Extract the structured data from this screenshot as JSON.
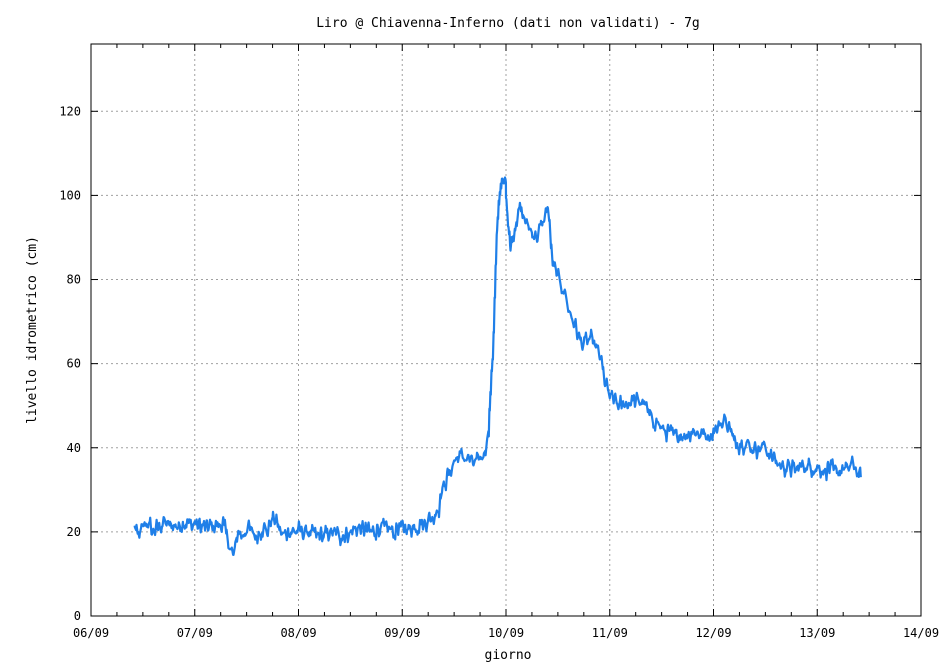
{
  "chart_data": {
    "type": "line",
    "title": "Liro @ Chiavenna-Inferno (dati non validati) - 7g",
    "xlabel": "giorno",
    "ylabel": "livello idrometrico (cm)",
    "xlim": [
      0,
      8
    ],
    "ylim": [
      0,
      136
    ],
    "x_ticks": [
      "06/09",
      "07/09",
      "08/09",
      "09/09",
      "10/09",
      "11/09",
      "12/09",
      "13/09",
      "14/09"
    ],
    "y_ticks": [
      0,
      20,
      40,
      60,
      80,
      100,
      120
    ],
    "grid": true,
    "line_color": "#1f7fe8",
    "series": [
      {
        "x": [
          0.42,
          0.45,
          0.5,
          0.55,
          0.6,
          0.7,
          0.8,
          0.9,
          1.0,
          1.1,
          1.2,
          1.27,
          1.32,
          1.37,
          1.42,
          1.45,
          1.5,
          1.55,
          1.6,
          1.65,
          1.7,
          1.75,
          1.8,
          1.85,
          1.9,
          2.0,
          2.1,
          2.2,
          2.3,
          2.4,
          2.5,
          2.6,
          2.7,
          2.8,
          2.9,
          3.0,
          3.1,
          3.2,
          3.3,
          3.35,
          3.4,
          3.45,
          3.5,
          3.55,
          3.6,
          3.65,
          3.7,
          3.75,
          3.8,
          3.83,
          3.85,
          3.87,
          3.89,
          3.91,
          3.93,
          3.95,
          3.97,
          3.99,
          4.0,
          4.02,
          4.04,
          4.07,
          4.1,
          4.13,
          4.16,
          4.2,
          4.25,
          4.3,
          4.35,
          4.4,
          4.45,
          4.5,
          4.55,
          4.6,
          4.65,
          4.7,
          4.75,
          4.8,
          4.85,
          4.9,
          4.95,
          5.0,
          5.05,
          5.1,
          5.2,
          5.3,
          5.35,
          5.4,
          5.45,
          5.5,
          5.6,
          5.7,
          5.8,
          5.9,
          6.0,
          6.05,
          6.1,
          6.15,
          6.2,
          6.3,
          6.4,
          6.5,
          6.55,
          6.6,
          6.65,
          6.7,
          6.8,
          6.9,
          7.0,
          7.1,
          7.2,
          7.3,
          7.35,
          7.4,
          7.42
        ],
        "y": [
          21,
          19,
          21,
          22,
          20,
          22,
          21,
          22,
          22,
          21,
          22,
          22,
          18,
          14,
          20,
          19,
          21,
          20,
          19,
          21,
          20,
          24,
          22,
          19,
          20,
          20,
          20,
          19,
          20,
          19,
          20,
          21,
          20,
          21,
          20,
          21,
          21,
          22,
          24,
          26,
          31,
          34,
          37,
          38,
          38,
          37,
          36,
          37,
          40,
          45,
          52,
          62,
          75,
          90,
          98,
          103,
          102,
          104,
          101,
          93,
          88,
          90,
          95,
          97,
          96,
          93,
          91,
          90,
          94,
          97,
          84,
          80,
          78,
          73,
          70,
          66,
          65,
          66,
          64,
          62,
          56,
          52,
          51,
          50,
          51,
          51,
          49,
          47,
          46,
          44,
          43,
          43,
          44,
          43,
          44,
          45,
          47,
          45,
          41,
          41,
          40,
          40,
          38,
          37,
          36,
          35,
          35,
          36,
          35,
          35,
          34,
          35,
          36,
          34,
          33
        ]
      }
    ]
  }
}
